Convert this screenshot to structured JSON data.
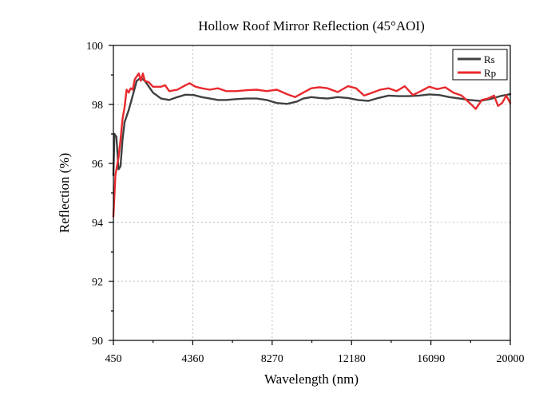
{
  "chart_data": {
    "type": "line",
    "title": "Hollow Roof Mirror Reflection (45°AOI)",
    "xlabel": "Wavelength (nm)",
    "ylabel": "Reflection (%)",
    "xlim": [
      450,
      20000
    ],
    "ylim": [
      90,
      100
    ],
    "xticks": [
      450,
      4360,
      8270,
      12180,
      16090,
      20000
    ],
    "xtick_labels": [
      "450",
      "4360",
      "8270",
      "12180",
      "16090",
      "20000"
    ],
    "yticks": [
      90,
      92,
      94,
      96,
      98,
      100
    ],
    "ytick_labels": [
      "90",
      "92",
      "94",
      "96",
      "98",
      "100"
    ],
    "grid": true,
    "legend_position": "top-right",
    "series": [
      {
        "name": "Rs",
        "color": "#404040",
        "x": [
          450,
          500,
          600,
          700,
          800,
          900,
          1000,
          1200,
          1400,
          1600,
          1800,
          2000,
          2100,
          2200,
          2400,
          2800,
          3200,
          3600,
          4000,
          4400,
          4800,
          5200,
          5600,
          6000,
          6500,
          7000,
          7500,
          8000,
          8500,
          9000,
          9500,
          9800,
          10200,
          10600,
          11000,
          11500,
          12000,
          12500,
          13000,
          13500,
          14000,
          14500,
          15000,
          15500,
          16000,
          16500,
          17000,
          17500,
          18000,
          18500,
          19000,
          19500,
          20000
        ],
        "y": [
          95.6,
          97.0,
          96.9,
          95.8,
          95.9,
          96.8,
          97.4,
          97.8,
          98.3,
          98.8,
          98.9,
          98.8,
          98.7,
          98.6,
          98.4,
          98.2,
          98.15,
          98.25,
          98.33,
          98.32,
          98.25,
          98.2,
          98.15,
          98.15,
          98.18,
          98.2,
          98.2,
          98.15,
          98.05,
          98.02,
          98.1,
          98.2,
          98.25,
          98.22,
          98.2,
          98.25,
          98.22,
          98.15,
          98.12,
          98.22,
          98.3,
          98.28,
          98.28,
          98.3,
          98.34,
          98.32,
          98.25,
          98.2,
          98.15,
          98.12,
          98.18,
          98.28,
          98.35
        ]
      },
      {
        "name": "Rp",
        "color": "#e8292e",
        "x": [
          450,
          550,
          700,
          800,
          900,
          1000,
          1100,
          1200,
          1300,
          1400,
          1500,
          1600,
          1700,
          1800,
          1900,
          2000,
          2200,
          2400,
          2800,
          3000,
          3200,
          3600,
          4000,
          4200,
          4500,
          4800,
          5200,
          5600,
          6000,
          6500,
          7000,
          7500,
          8000,
          8500,
          9000,
          9400,
          9800,
          10200,
          10600,
          11000,
          11500,
          12000,
          12400,
          12800,
          13200,
          13600,
          14000,
          14400,
          14800,
          15200,
          15600,
          16000,
          16400,
          16800,
          17200,
          17600,
          18000,
          18300,
          18600,
          18900,
          19200,
          19400,
          19600,
          19800,
          20000
        ],
        "y": [
          94.2,
          95.6,
          96.2,
          96.8,
          97.5,
          97.9,
          98.5,
          98.4,
          98.55,
          98.5,
          98.85,
          98.95,
          99.05,
          98.8,
          99.05,
          98.8,
          98.75,
          98.6,
          98.6,
          98.65,
          98.45,
          98.5,
          98.65,
          98.72,
          98.6,
          98.55,
          98.5,
          98.55,
          98.45,
          98.45,
          98.48,
          98.5,
          98.45,
          98.5,
          98.35,
          98.25,
          98.4,
          98.55,
          98.58,
          98.55,
          98.42,
          98.62,
          98.55,
          98.3,
          98.4,
          98.5,
          98.55,
          98.45,
          98.62,
          98.32,
          98.45,
          98.6,
          98.52,
          98.58,
          98.4,
          98.3,
          98.05,
          97.85,
          98.15,
          98.2,
          98.3,
          97.95,
          98.05,
          98.3,
          98.05
        ]
      }
    ]
  }
}
